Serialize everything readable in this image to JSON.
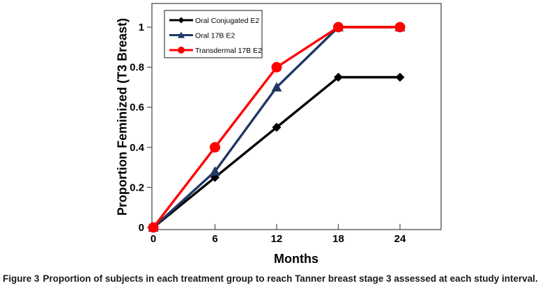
{
  "figure": {
    "caption": {
      "label": "Figure 3",
      "text": "Proportion of subjects in each treatment group to reach Tanner breast stage 3 assessed at each study interval."
    }
  },
  "chart_data": {
    "type": "line",
    "title": "",
    "xlabel": "Months",
    "ylabel": "Proportion Feminized (T3 Breast)",
    "x": [
      0,
      6,
      12,
      18,
      24
    ],
    "x_tick_labels": [
      "0",
      "6",
      "12",
      "18",
      "24"
    ],
    "y_tick_values": [
      0,
      0.2,
      0.4,
      0.6,
      0.8,
      1
    ],
    "y_tick_labels": [
      "0",
      "0.2",
      "0.4",
      "0.6",
      "0.8",
      "1"
    ],
    "xlim": [
      0,
      28
    ],
    "ylim": [
      0,
      1.12
    ],
    "grid": false,
    "legend_position": "top-left",
    "axis_color": "#595959",
    "series": [
      {
        "name": "Oral Conjugated E2",
        "marker": "diamond",
        "color": "#000000",
        "values": [
          0,
          0.25,
          0.5,
          0.75,
          0.75
        ]
      },
      {
        "name": "Oral 17B E2",
        "marker": "triangle",
        "color": "#1f3864",
        "values": [
          0,
          0.28,
          0.7,
          1,
          1
        ]
      },
      {
        "name": "Transdermal 17B E2",
        "marker": "circle",
        "color": "#ff0000",
        "values": [
          0,
          0.4,
          0.8,
          1,
          1
        ]
      }
    ]
  }
}
